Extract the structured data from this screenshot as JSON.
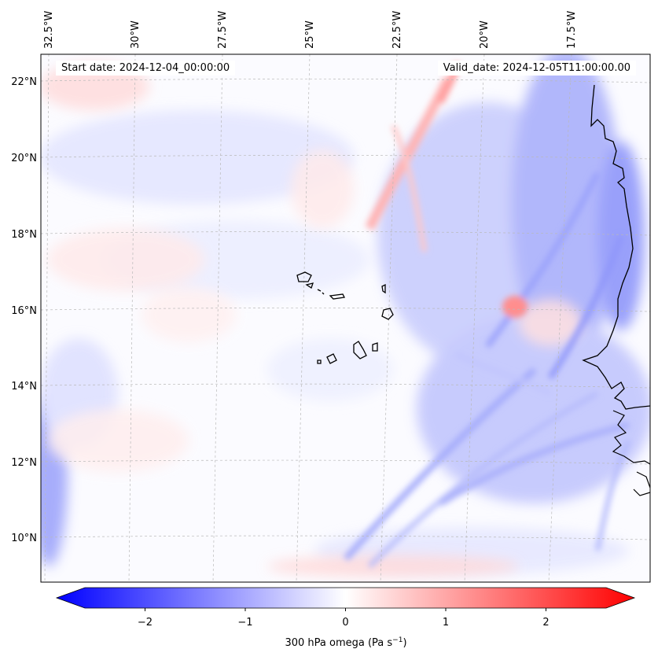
{
  "map": {
    "start_date": "Start date: 2024-12-04_00:00:00",
    "valid_date": "Valid_date: 2024-12-05T11:00:00.00",
    "lon_labels": [
      "32.5°W",
      "30°W",
      "27.5°W",
      "25°W",
      "22.5°W",
      "20°W",
      "17.5°W"
    ],
    "lat_labels": [
      "22°N",
      "20°N",
      "18°N",
      "16°N",
      "14°N",
      "12°N",
      "10°N"
    ],
    "field": "300 hPa omega",
    "colors": {
      "negative": "#0000ff",
      "neutral": "#ffffff",
      "positive": "#ff0000",
      "coastline": "#000000",
      "grid": "#bbbbbb"
    }
  },
  "colorbar": {
    "label_prefix": "300 hPa omega (Pa s",
    "label_exp": "−1",
    "label_suffix": ")",
    "ticks": [
      "−2",
      "−1",
      "0",
      "1",
      "2"
    ],
    "tick_values": [
      -2,
      -1,
      0,
      1,
      2
    ],
    "range": [
      -2.6,
      2.6
    ]
  }
}
